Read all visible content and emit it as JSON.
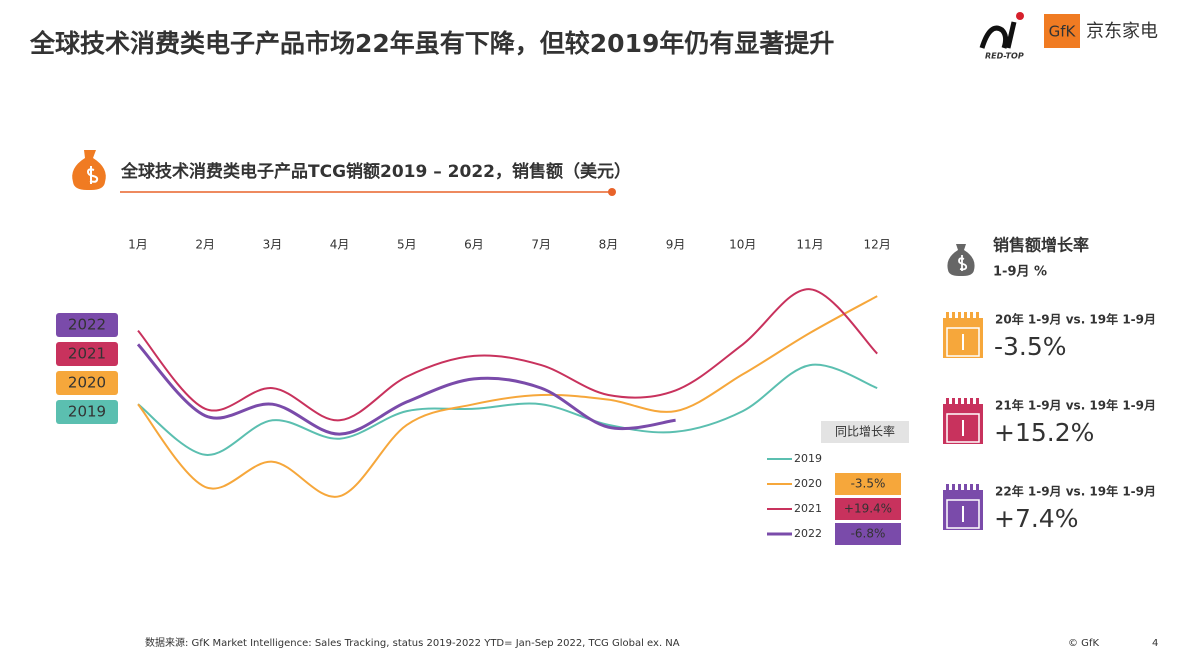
{
  "title": "全球技术消费类电子产品市场22年虽有下降，但较2019年仍有显著提升",
  "logos": [
    "RED-TOP",
    "GfK",
    "京东家电"
  ],
  "chart_data": {
    "type": "line",
    "title": "全球技术消费类电子产品TCG销额2019 – 2022，销售额（美元）",
    "categories": [
      "1月",
      "2月",
      "3月",
      "4月",
      "5月",
      "6月",
      "7月",
      "8月",
      "9月",
      "10月",
      "11月",
      "12月"
    ],
    "ylim": [
      0,
      100
    ],
    "legend_title": "同比增长率",
    "series": [
      {
        "name": "2019",
        "color": "#5bbfb0",
        "values": [
          46,
          24,
          39,
          31,
          43,
          44,
          46,
          37,
          34,
          43,
          63,
          53
        ]
      },
      {
        "name": "2020",
        "color": "#f6a73b",
        "values": [
          46,
          10,
          21,
          6,
          37,
          46,
          50,
          48,
          43,
          59,
          77,
          93
        ],
        "yoy": -3.5,
        "yoy_label": "-3.5%"
      },
      {
        "name": "2021",
        "color": "#c8325d",
        "values": [
          78,
          44,
          53,
          39,
          58,
          67,
          63,
          50,
          52,
          72,
          96,
          68
        ],
        "yoy": 19.4,
        "yoy_label": "+19.4%"
      },
      {
        "name": "2022",
        "color": "#7a4baa",
        "values": [
          72,
          41,
          46,
          33,
          47,
          57,
          53,
          36,
          39,
          null,
          null,
          null
        ],
        "yoy": -6.8,
        "yoy_label": "-6.8%"
      }
    ]
  },
  "side_panel": {
    "title": "销售额增长率",
    "subtitle": "1-9月 %",
    "cards": [
      {
        "label": "20年 1-9月 vs. 19年 1-9月",
        "value": -3.5,
        "value_label": "-3.5%",
        "color": "#f6a73b"
      },
      {
        "label": "21年 1-9月 vs. 19年 1-9月",
        "value": 15.2,
        "value_label": "+15.2%",
        "color": "#c8325d"
      },
      {
        "label": "22年 1-9月 vs. 19年 1-9月",
        "value": 7.4,
        "value_label": "+7.4%",
        "color": "#7a4baa"
      }
    ]
  },
  "footer": {
    "source": "数据来源: GfK Market Intelligence: Sales Tracking, status 2019-2022 YTD= Jan-Sep 2022, TCG Global ex. NA",
    "copyright": "© GfK",
    "page": "4"
  }
}
